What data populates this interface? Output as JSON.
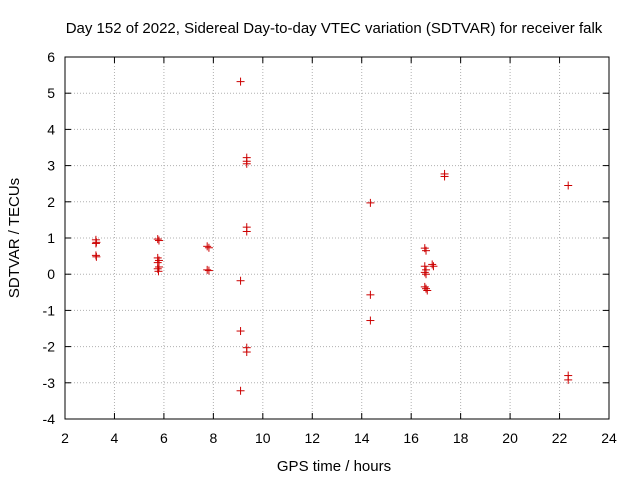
{
  "chart_data": {
    "type": "scatter",
    "title": "Day 152 of 2022, Sidereal Day-to-day VTEC variation (SDTVAR) for receiver falk",
    "xlabel": "GPS time / hours",
    "ylabel": "SDTVAR / TECUs",
    "xlim": [
      2,
      24
    ],
    "ylim": [
      -4,
      6
    ],
    "xticks": [
      2,
      4,
      6,
      8,
      10,
      12,
      14,
      16,
      18,
      20,
      22,
      24
    ],
    "yticks": [
      -4,
      -3,
      -2,
      -1,
      0,
      1,
      2,
      3,
      4,
      5,
      6
    ],
    "grid": true,
    "marker": "+",
    "marker_color": "#cc0000",
    "series": [
      {
        "name": "SDTVAR",
        "points": [
          [
            3.25,
            0.95
          ],
          [
            3.27,
            0.88
          ],
          [
            3.25,
            0.85
          ],
          [
            3.25,
            0.52
          ],
          [
            3.27,
            0.48
          ],
          [
            5.75,
            0.97
          ],
          [
            5.8,
            0.93
          ],
          [
            5.75,
            0.45
          ],
          [
            5.8,
            0.38
          ],
          [
            5.75,
            0.32
          ],
          [
            5.8,
            0.2
          ],
          [
            5.75,
            0.15
          ],
          [
            5.78,
            0.08
          ],
          [
            7.75,
            0.77
          ],
          [
            7.82,
            0.73
          ],
          [
            7.75,
            0.12
          ],
          [
            7.82,
            0.1
          ],
          [
            9.1,
            5.32
          ],
          [
            9.1,
            -0.18
          ],
          [
            9.1,
            -1.57
          ],
          [
            9.1,
            -3.22
          ],
          [
            9.35,
            3.22
          ],
          [
            9.35,
            3.12
          ],
          [
            9.35,
            3.05
          ],
          [
            9.35,
            1.3
          ],
          [
            9.35,
            1.18
          ],
          [
            9.35,
            -2.03
          ],
          [
            9.35,
            -2.15
          ],
          [
            14.35,
            1.97
          ],
          [
            14.35,
            -0.57
          ],
          [
            14.35,
            -1.28
          ],
          [
            16.55,
            0.72
          ],
          [
            16.6,
            0.65
          ],
          [
            16.55,
            0.22
          ],
          [
            16.6,
            0.12
          ],
          [
            16.55,
            0.05
          ],
          [
            16.6,
            0.0
          ],
          [
            16.55,
            -0.35
          ],
          [
            16.6,
            -0.4
          ],
          [
            16.65,
            -0.45
          ],
          [
            16.85,
            0.27
          ],
          [
            16.9,
            0.22
          ],
          [
            17.35,
            2.77
          ],
          [
            17.35,
            2.7
          ],
          [
            22.35,
            2.45
          ],
          [
            22.35,
            -2.8
          ],
          [
            22.35,
            -2.92
          ]
        ]
      }
    ]
  }
}
